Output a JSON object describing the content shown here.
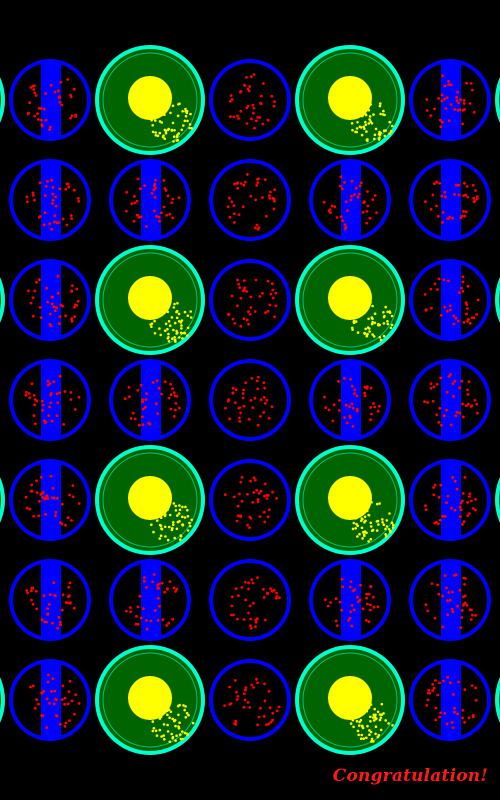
{
  "game": {
    "status_message": "Congratulation!",
    "colors": {
      "background": "#000000",
      "dish_ring": "#0000ff",
      "dish_fill": "#000000",
      "dish_band": "#0000ff",
      "dot": "#ff0000",
      "target_ring": "#00ffcc",
      "target_fill": "#006400",
      "target_core": "#ffff00",
      "target_dot": "#ffff00",
      "message": "#ff1a1a"
    },
    "board": {
      "rows": 7,
      "columns": 6,
      "visible_edge_columns": 2,
      "cells": [
        [
          "dish-band",
          "target",
          "dish-plain",
          "target",
          "dish-band",
          "dish-edge"
        ],
        [
          "dish-band",
          "dish-band",
          "dish-plain",
          "dish-band",
          "dish-band",
          "dish-band"
        ],
        [
          "dish-band",
          "target",
          "dish-plain",
          "target",
          "dish-band",
          "dish-edge"
        ],
        [
          "dish-band",
          "dish-band",
          "dish-plain",
          "dish-band",
          "dish-band",
          "dish-band"
        ],
        [
          "dish-band",
          "target",
          "dish-plain",
          "target",
          "dish-band",
          "dish-edge"
        ],
        [
          "dish-band",
          "dish-band",
          "dish-plain",
          "dish-band",
          "dish-band",
          "dish-band"
        ],
        [
          "dish-band",
          "target",
          "dish-plain",
          "target",
          "dish-band",
          "dish-edge"
        ]
      ]
    }
  }
}
